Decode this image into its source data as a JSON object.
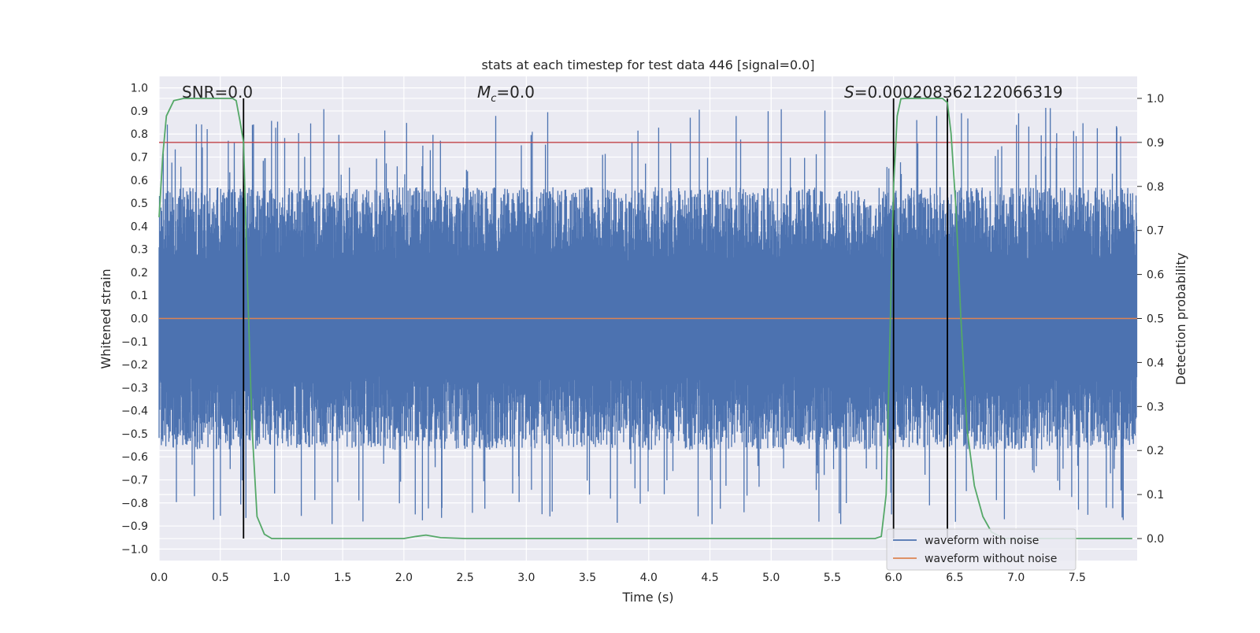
{
  "chart_data": {
    "type": "line",
    "title": "stats at each timestep for test data 446 [signal=0.0]",
    "xlabel": "Time (s)",
    "ylabel": "Whitened strain",
    "ylabel_right": "Detection probability",
    "xlim": [
      0.0,
      7.99
    ],
    "ylim": [
      -1.05,
      1.05
    ],
    "ylim_right": [
      -0.05,
      1.05
    ],
    "x_ticks": [
      "0.0",
      "0.5",
      "1.0",
      "1.5",
      "2.0",
      "2.5",
      "3.0",
      "3.5",
      "4.0",
      "4.5",
      "5.0",
      "5.5",
      "6.0",
      "6.5",
      "7.0",
      "7.5"
    ],
    "y_ticks": [
      "1.0",
      "0.9",
      "0.8",
      "0.7",
      "0.6",
      "0.5",
      "0.4",
      "0.3",
      "0.2",
      "0.1",
      "0.0",
      "−0.1",
      "−0.2",
      "−0.3",
      "−0.4",
      "−0.5",
      "−0.6",
      "−0.7",
      "−0.8",
      "−0.9",
      "−1.0"
    ],
    "y_ticks_right": [
      "1.0",
      "0.9",
      "0.8",
      "0.7",
      "0.6",
      "0.5",
      "0.4",
      "0.3",
      "0.2",
      "0.1",
      "0.0"
    ],
    "grid": true,
    "legend_placement": "lower-right",
    "annotations": {
      "snr_label": "SNR=0.0",
      "mc_label": "Mc=0.0",
      "s_label": "S=0.000208362122066319"
    },
    "threshold_right": 0.9,
    "vertical_markers": [
      0.69,
      6.0,
      6.44
    ],
    "series": [
      {
        "name": "waveform with noise",
        "color": "#4c72b0",
        "note_kind": "noise",
        "approx_range": [
          -0.92,
          1.0
        ]
      },
      {
        "name": "waveform without noise",
        "color": "#dd8452",
        "x": [
          0.0,
          7.99
        ],
        "values": [
          0.0,
          0.0
        ]
      },
      {
        "name": "",
        "color": "#55a868",
        "axis": "right",
        "x": [
          0.0,
          0.03,
          0.06,
          0.12,
          0.2,
          0.3,
          0.4,
          0.5,
          0.6,
          0.63,
          0.66,
          0.69,
          0.72,
          0.76,
          0.8,
          0.86,
          0.92,
          1.0,
          1.5,
          2.0,
          2.1,
          2.18,
          2.3,
          2.5,
          3.0,
          4.0,
          5.0,
          5.5,
          5.85,
          5.9,
          5.94,
          5.97,
          6.0,
          6.03,
          6.06,
          6.1,
          6.2,
          6.3,
          6.4,
          6.44,
          6.47,
          6.51,
          6.55,
          6.6,
          6.66,
          6.73,
          6.8,
          6.9,
          7.1,
          7.5,
          7.95
        ],
        "values": [
          0.73,
          0.87,
          0.96,
          0.995,
          1.0,
          1.0,
          1.0,
          1.0,
          1.0,
          0.995,
          0.95,
          0.9,
          0.6,
          0.25,
          0.05,
          0.01,
          0.0,
          0.0,
          0.0,
          0.0,
          0.005,
          0.008,
          0.002,
          0.0,
          0.0,
          0.0,
          0.0,
          0.0,
          0.0,
          0.005,
          0.1,
          0.45,
          0.8,
          0.96,
          0.999,
          1.0,
          1.0,
          1.0,
          1.0,
          0.99,
          0.92,
          0.75,
          0.5,
          0.25,
          0.12,
          0.05,
          0.015,
          0.0,
          0.0,
          0.0,
          0.0
        ]
      }
    ]
  }
}
